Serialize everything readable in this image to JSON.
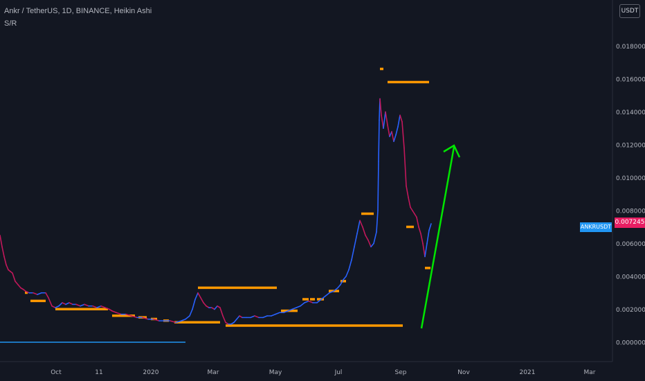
{
  "header": {
    "title": "Ankr / TetherUS, 1D, BINANCE, Heikin Ashi",
    "indicator": "S/R"
  },
  "currency_button": "USDT",
  "price_tag": "0.007245",
  "symbol_tag": "ANKRUSDT",
  "colors": {
    "background": "#131722",
    "candle_up": "#2962ff",
    "candle_down": "#c2185b",
    "sr_lines": "#ff9800",
    "arrow": "#00e600",
    "baseline": "#2196f3"
  },
  "chart_data": {
    "type": "line",
    "style": "heikin-ashi candles",
    "y_ticks": [
      "0.018000",
      "0.016000",
      "0.014000",
      "0.012000",
      "0.010000",
      "0.008000",
      "0.006000",
      "0.004000",
      "0.002000",
      "0.000000"
    ],
    "x_ticks": [
      "Oct",
      "11",
      "2020",
      "Mar",
      "May",
      "Jul",
      "Sep",
      "Nov",
      "2021",
      "Mar"
    ],
    "ylim": [
      -0.00125,
      0.0195
    ],
    "price_points": [
      [
        0,
        0.0065
      ],
      [
        3,
        0.0058
      ],
      [
        6,
        0.0052
      ],
      [
        9,
        0.0047
      ],
      [
        12,
        0.0044
      ],
      [
        15,
        0.0043
      ],
      [
        18,
        0.0042
      ],
      [
        22,
        0.0037
      ],
      [
        26,
        0.0035
      ],
      [
        30,
        0.0033
      ],
      [
        34,
        0.0032
      ],
      [
        37,
        0.0031
      ],
      [
        42,
        0.003
      ],
      [
        48,
        0.003
      ],
      [
        54,
        0.0029
      ],
      [
        60,
        0.003
      ],
      [
        66,
        0.003
      ],
      [
        70,
        0.0027
      ],
      [
        75,
        0.0022
      ],
      [
        80,
        0.0021
      ],
      [
        85,
        0.0022
      ],
      [
        90,
        0.0024
      ],
      [
        95,
        0.0023
      ],
      [
        100,
        0.0024
      ],
      [
        105,
        0.0023
      ],
      [
        110,
        0.0023
      ],
      [
        116,
        0.0022
      ],
      [
        122,
        0.0023
      ],
      [
        128,
        0.0022
      ],
      [
        134,
        0.0022
      ],
      [
        140,
        0.0021
      ],
      [
        146,
        0.0022
      ],
      [
        152,
        0.0021
      ],
      [
        158,
        0.002
      ],
      [
        162,
        0.0019
      ],
      [
        168,
        0.0018
      ],
      [
        175,
        0.0017
      ],
      [
        182,
        0.0017
      ],
      [
        190,
        0.0016
      ],
      [
        198,
        0.0015
      ],
      [
        206,
        0.0015
      ],
      [
        214,
        0.0014
      ],
      [
        222,
        0.0014
      ],
      [
        230,
        0.0013
      ],
      [
        238,
        0.0013
      ],
      [
        246,
        0.0013
      ],
      [
        254,
        0.0012
      ],
      [
        262,
        0.0013
      ],
      [
        268,
        0.0014
      ],
      [
        274,
        0.0016
      ],
      [
        278,
        0.002
      ],
      [
        282,
        0.0026
      ],
      [
        286,
        0.003
      ],
      [
        290,
        0.0027
      ],
      [
        294,
        0.0024
      ],
      [
        298,
        0.0022
      ],
      [
        302,
        0.0021
      ],
      [
        306,
        0.0021
      ],
      [
        310,
        0.002
      ],
      [
        314,
        0.0022
      ],
      [
        318,
        0.0021
      ],
      [
        322,
        0.0016
      ],
      [
        326,
        0.0012
      ],
      [
        330,
        0.0011
      ],
      [
        334,
        0.0011
      ],
      [
        338,
        0.0012
      ],
      [
        342,
        0.0014
      ],
      [
        346,
        0.0016
      ],
      [
        350,
        0.0015
      ],
      [
        356,
        0.0015
      ],
      [
        362,
        0.0015
      ],
      [
        368,
        0.0016
      ],
      [
        374,
        0.0015
      ],
      [
        380,
        0.0015
      ],
      [
        386,
        0.0016
      ],
      [
        392,
        0.0016
      ],
      [
        398,
        0.0017
      ],
      [
        404,
        0.0018
      ],
      [
        410,
        0.0018
      ],
      [
        416,
        0.0019
      ],
      [
        422,
        0.002
      ],
      [
        428,
        0.0021
      ],
      [
        434,
        0.0022
      ],
      [
        440,
        0.0024
      ],
      [
        446,
        0.0025
      ],
      [
        452,
        0.0024
      ],
      [
        458,
        0.0024
      ],
      [
        464,
        0.0026
      ],
      [
        470,
        0.0028
      ],
      [
        476,
        0.003
      ],
      [
        482,
        0.0031
      ],
      [
        488,
        0.0033
      ],
      [
        492,
        0.0035
      ],
      [
        496,
        0.0038
      ],
      [
        500,
        0.004
      ],
      [
        504,
        0.0044
      ],
      [
        508,
        0.005
      ],
      [
        512,
        0.0058
      ],
      [
        516,
        0.0066
      ],
      [
        520,
        0.0074
      ],
      [
        524,
        0.007
      ],
      [
        528,
        0.0065
      ],
      [
        532,
        0.0062
      ],
      [
        536,
        0.0058
      ],
      [
        540,
        0.006
      ],
      [
        544,
        0.0067
      ],
      [
        546,
        0.008
      ],
      [
        547,
        0.011
      ],
      [
        548,
        0.0135
      ],
      [
        549,
        0.0148
      ],
      [
        551,
        0.0138
      ],
      [
        554,
        0.013
      ],
      [
        557,
        0.014
      ],
      [
        560,
        0.0132
      ],
      [
        563,
        0.0125
      ],
      [
        566,
        0.0128
      ],
      [
        569,
        0.0122
      ],
      [
        572,
        0.0126
      ],
      [
        575,
        0.0131
      ],
      [
        578,
        0.0138
      ],
      [
        581,
        0.0134
      ],
      [
        584,
        0.0118
      ],
      [
        587,
        0.0095
      ],
      [
        590,
        0.0088
      ],
      [
        593,
        0.0082
      ],
      [
        596,
        0.008
      ],
      [
        599,
        0.0078
      ],
      [
        602,
        0.0076
      ],
      [
        605,
        0.007
      ],
      [
        608,
        0.0066
      ],
      [
        611,
        0.006
      ],
      [
        614,
        0.0052
      ],
      [
        617,
        0.006
      ],
      [
        620,
        0.0068
      ],
      [
        623,
        0.0072
      ]
    ],
    "sr_levels": [
      [
        36,
        40,
        0.003
      ],
      [
        44,
        66,
        0.0025
      ],
      [
        80,
        156,
        0.002
      ],
      [
        162,
        195,
        0.0016
      ],
      [
        200,
        212,
        0.0015
      ],
      [
        218,
        227,
        0.0014
      ],
      [
        236,
        244,
        0.0013
      ],
      [
        252,
        318,
        0.0012
      ],
      [
        286,
        400,
        0.0033
      ],
      [
        326,
        582,
        0.001
      ],
      [
        406,
        430,
        0.0019
      ],
      [
        437,
        446,
        0.0026
      ],
      [
        448,
        455,
        0.0026
      ],
      [
        458,
        468,
        0.0026
      ],
      [
        475,
        490,
        0.0031
      ],
      [
        492,
        500,
        0.0037
      ],
      [
        522,
        540,
        0.0078
      ],
      [
        549,
        554,
        0.0166
      ],
      [
        560,
        620,
        0.0158
      ],
      [
        587,
        598,
        0.007
      ],
      [
        614,
        622,
        0.0045
      ]
    ]
  }
}
